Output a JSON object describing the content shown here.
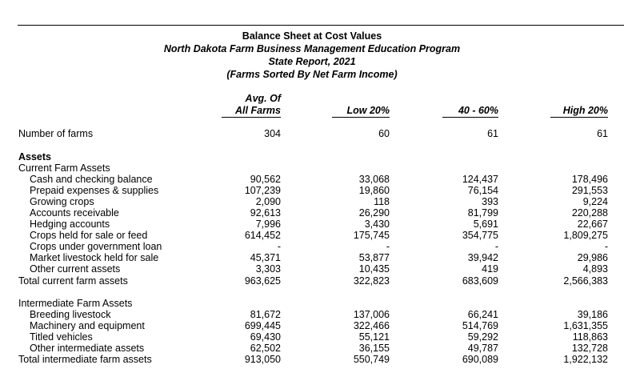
{
  "title": [
    "Balance Sheet at Cost Values",
    "North Dakota Farm Business Management Education Program",
    "State Report, 2021",
    "(Farms Sorted By Net Farm Income)"
  ],
  "columns": [
    [
      "Avg. Of",
      "All Farms"
    ],
    [
      "",
      "Low 20%"
    ],
    [
      "",
      "40 - 60%"
    ],
    [
      "",
      "High 20%"
    ]
  ],
  "farms": {
    "label": "Number of farms",
    "values": [
      "304",
      "60",
      "61",
      "61"
    ]
  },
  "assets_heading": "Assets",
  "current": {
    "heading": "Current Farm Assets",
    "rows": [
      {
        "label": "Cash and checking balance",
        "values": [
          "90,562",
          "33,068",
          "124,437",
          "178,496"
        ]
      },
      {
        "label": "Prepaid expenses & supplies",
        "values": [
          "107,239",
          "19,860",
          "76,154",
          "291,553"
        ]
      },
      {
        "label": "Growing crops",
        "values": [
          "2,090",
          "118",
          "393",
          "9,224"
        ]
      },
      {
        "label": "Accounts receivable",
        "values": [
          "92,613",
          "26,290",
          "81,799",
          "220,288"
        ]
      },
      {
        "label": "Hedging accounts",
        "values": [
          "7,996",
          "3,430",
          "5,691",
          "22,667"
        ]
      },
      {
        "label": "Crops held for sale or feed",
        "values": [
          "614,452",
          "175,745",
          "354,775",
          "1,809,275"
        ]
      },
      {
        "label": "Crops under government loan",
        "values": [
          "-",
          "-",
          "-",
          "-"
        ]
      },
      {
        "label": "Market livestock held for sale",
        "values": [
          "45,371",
          "53,877",
          "39,942",
          "29,986"
        ]
      },
      {
        "label": "Other current assets",
        "values": [
          "3,303",
          "10,435",
          "419",
          "4,893"
        ]
      }
    ],
    "total": {
      "label": "Total current farm assets",
      "values": [
        "963,625",
        "322,823",
        "683,609",
        "2,566,383"
      ]
    }
  },
  "intermediate": {
    "heading": "Intermediate Farm Assets",
    "rows": [
      {
        "label": "Breeding livestock",
        "values": [
          "81,672",
          "137,006",
          "66,241",
          "39,186"
        ]
      },
      {
        "label": "Machinery and equipment",
        "values": [
          "699,445",
          "322,466",
          "514,769",
          "1,631,355"
        ]
      },
      {
        "label": "Titled vehicles",
        "values": [
          "69,430",
          "55,121",
          "59,292",
          "118,863"
        ]
      },
      {
        "label": "Other intermediate assets",
        "values": [
          "62,502",
          "36,155",
          "49,787",
          "132,728"
        ]
      }
    ],
    "total": {
      "label": "Total intermediate farm assets",
      "values": [
        "913,050",
        "550,749",
        "690,089",
        "1,922,132"
      ]
    }
  }
}
